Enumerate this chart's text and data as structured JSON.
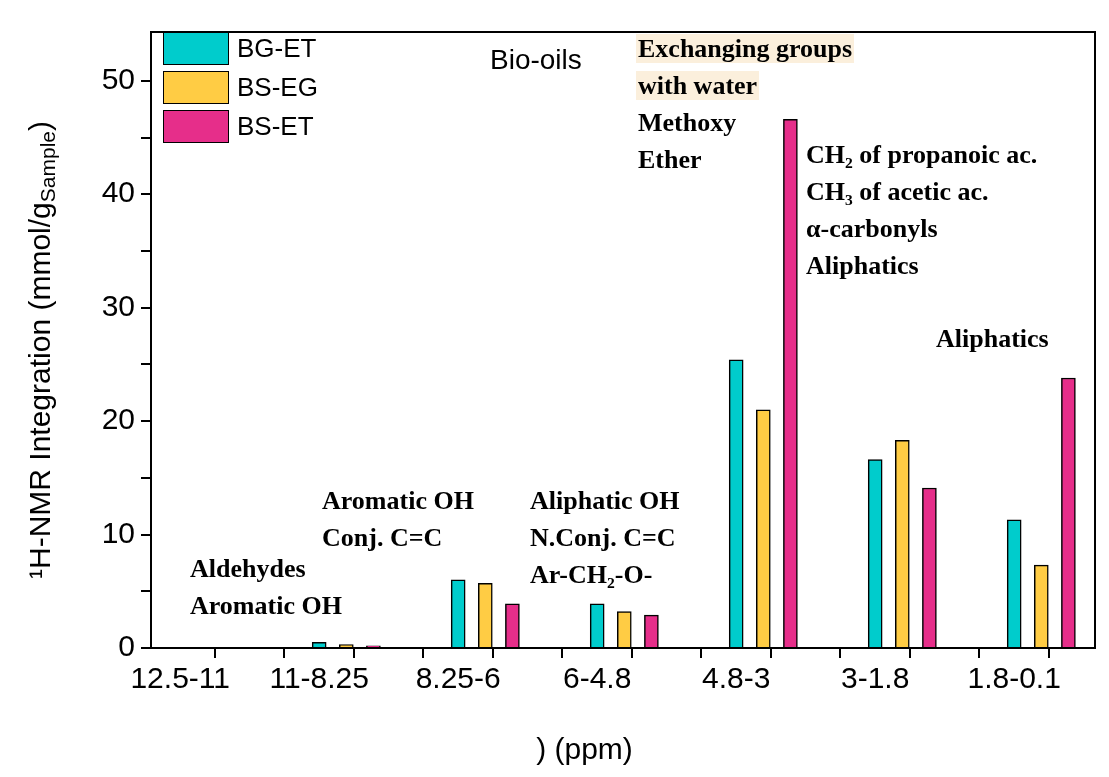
{
  "chart_data": {
    "type": "bar",
    "title": "Bio-oils",
    "xlabel": ") (ppm)",
    "ylabel": "¹H-NMR Integration (mmol/g$_{Sample}$)",
    "categories": [
      "12.5-11",
      "11-8.25",
      "8.25-6",
      "6-4.8",
      "4.8-3",
      "3-1.8",
      "1.8-0.1"
    ],
    "series": [
      {
        "name": "BG-ET",
        "color": "#00cccc",
        "values": [
          0,
          0.5,
          6.0,
          3.9,
          25.4,
          16.6,
          11.3
        ]
      },
      {
        "name": "BS-EG",
        "color": "#ffcc44",
        "values": [
          0,
          0.3,
          5.7,
          3.2,
          21.0,
          18.3,
          7.3
        ]
      },
      {
        "name": "BS-ET",
        "color": "#e62e8a",
        "values": [
          0,
          0.2,
          3.9,
          2.9,
          46.6,
          14.1,
          23.8
        ]
      }
    ],
    "ylim": [
      0,
      54.3
    ],
    "yticks": [
      0,
      {
        "value": 5,
        "label": null
      },
      10,
      {
        "value": 15,
        "label": null
      },
      20,
      {
        "value": 25,
        "label": null
      },
      30,
      {
        "value": 35,
        "label": null
      },
      40,
      {
        "value": 45,
        "label": null
      },
      50
    ],
    "grid": false,
    "legend": "top left",
    "annotations": [
      "Aldehydes\nAromatic OH",
      "Aromatic OH\nConj. C=C",
      "Aliphatic OH\nN.Conj. C=C\nAr-CH₂-O-",
      "Exchanging groups\nwith water",
      "Methoxy\nEther",
      "CH₂ of propanoic ac.\nCH₃ of acetic ac.\nα-carbonyls\nAliphatics",
      "Aliphatics"
    ]
  }
}
